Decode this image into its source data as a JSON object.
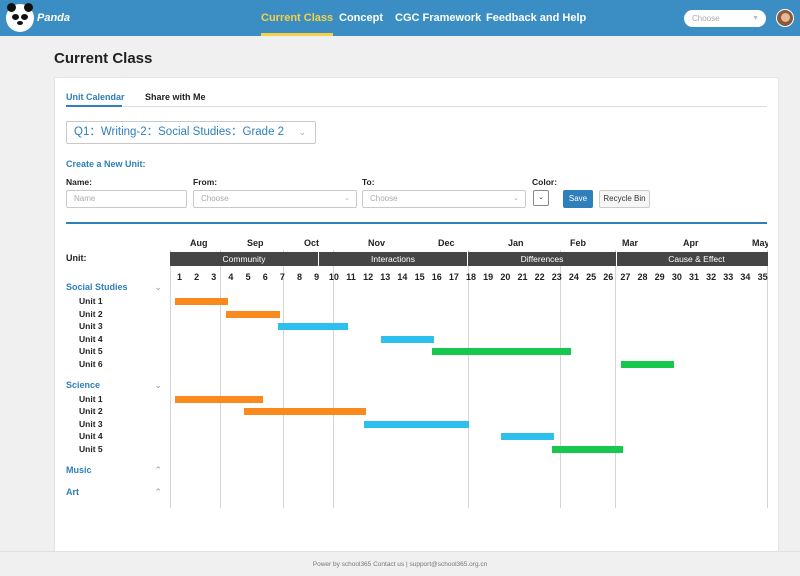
{
  "header": {
    "brand": "Panda",
    "nav": [
      "Current Class",
      "Concept",
      "CGC Framework",
      "Feedback and Help"
    ],
    "select_placeholder": "Choose"
  },
  "page": {
    "title": "Current Class",
    "tabs": [
      "Unit Calendar",
      "Share with Me"
    ],
    "class_select": "Q1：Writing-2：Social Studies：Grade 2"
  },
  "form": {
    "heading": "Create a New Unit:",
    "name_label": "Name:",
    "name_placeholder": "Name",
    "from_label": "From:",
    "from_placeholder": "Choose",
    "to_label": "To:",
    "to_placeholder": "Choose",
    "color_label": "Color:",
    "save": "Save",
    "recycle": "Recycle Bin"
  },
  "calendar": {
    "unit_label": "Unit:",
    "months": [
      "Aug",
      "Sep",
      "Oct",
      "Nov",
      "Dec",
      "Jan",
      "Feb",
      "Mar",
      "Apr",
      "May"
    ],
    "themes": [
      "Community",
      "Interactions",
      "Differences",
      "Cause & Effect"
    ],
    "weeks": [
      "1",
      "2",
      "3",
      "4",
      "5",
      "6",
      "7",
      "8",
      "9",
      "10",
      "11",
      "12",
      "13",
      "14",
      "15",
      "16",
      "17",
      "18",
      "19",
      "20",
      "21",
      "22",
      "23",
      "24",
      "25",
      "26",
      "27",
      "28",
      "29",
      "30",
      "31",
      "32",
      "33",
      "34",
      "35"
    ],
    "subjects": [
      {
        "name": "Social Studies",
        "expanded": true,
        "units": [
          {
            "label": "Unit 1",
            "color": "#fb8a1e",
            "start_week": 1,
            "end_week": 4
          },
          {
            "label": "Unit 2",
            "color": "#fb8a1e",
            "start_week": 4,
            "end_week": 7
          },
          {
            "label": "Unit 3",
            "color": "#2ec0ec",
            "start_week": 7,
            "end_week": 11
          },
          {
            "label": "Unit 4",
            "color": "#2ec0ec",
            "start_week": 13,
            "end_week": 16
          },
          {
            "label": "Unit 5",
            "color": "#17c84e",
            "start_week": 16,
            "end_week": 24
          },
          {
            "label": "Unit 6",
            "color": "#17c84e",
            "start_week": 27,
            "end_week": 30
          }
        ]
      },
      {
        "name": "Science",
        "expanded": true,
        "units": [
          {
            "label": "Unit 1",
            "color": "#fb8a1e",
            "start_week": 1,
            "end_week": 6
          },
          {
            "label": "Unit 2",
            "color": "#fb8a1e",
            "start_week": 5,
            "end_week": 12
          },
          {
            "label": "Unit 3",
            "color": "#2ec0ec",
            "start_week": 12,
            "end_week": 18
          },
          {
            "label": "Unit 4",
            "color": "#2ec0ec",
            "start_week": 20,
            "end_week": 23
          },
          {
            "label": "Unit 5",
            "color": "#17c84e",
            "start_week": 23,
            "end_week": 27
          }
        ]
      },
      {
        "name": "Music",
        "expanded": false,
        "units": []
      },
      {
        "name": "Art",
        "expanded": false,
        "units": []
      }
    ]
  },
  "footer": "Power by school365  Contact us | support@school365.org.cn"
}
